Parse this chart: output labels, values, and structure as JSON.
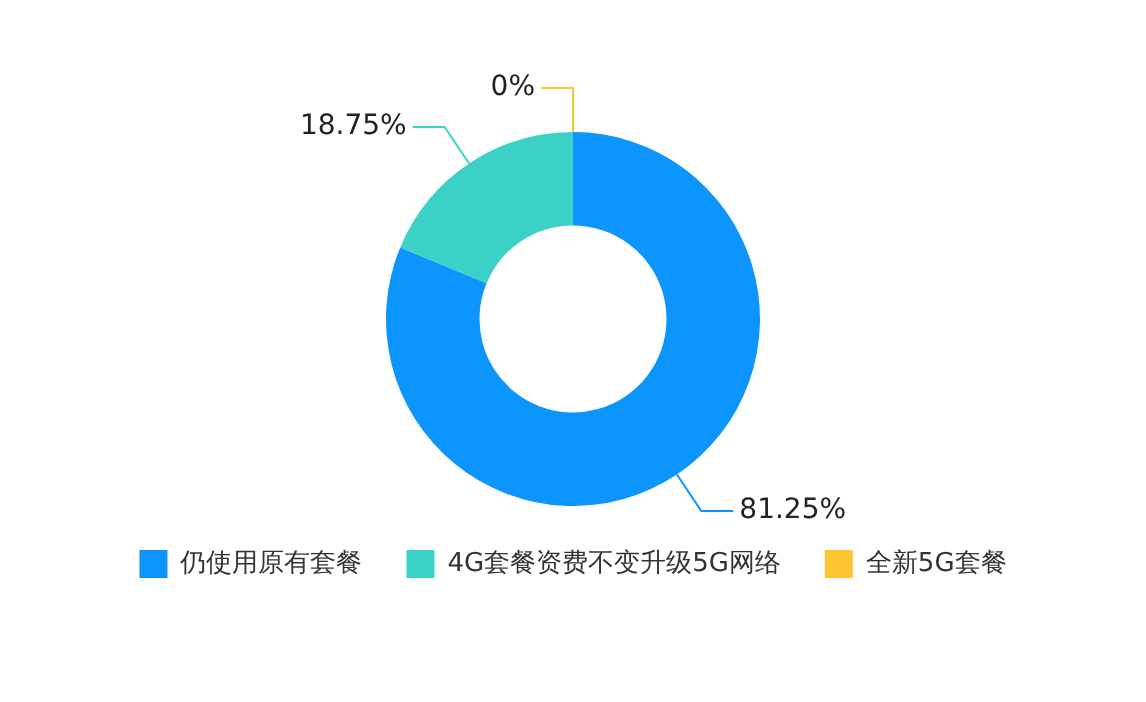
{
  "chart_data": {
    "type": "donut",
    "categories": [
      "仍使用原有套餐",
      "4G套餐资费不变升级5G网络",
      "全新5G套餐"
    ],
    "values": [
      81.25,
      18.75,
      0
    ],
    "colors": [
      "#0b95fd",
      "#3bd1c6",
      "#fdc433"
    ],
    "value_labels": [
      "81.25%",
      "18.75%",
      "0%"
    ],
    "legend": "bottom"
  }
}
